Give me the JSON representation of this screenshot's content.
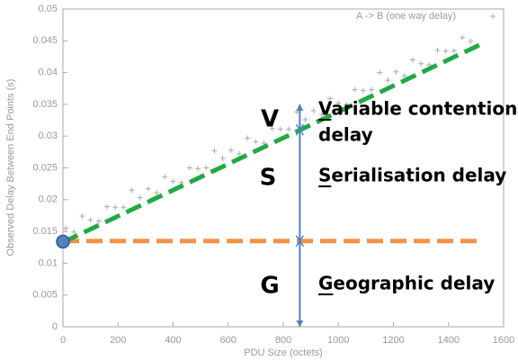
{
  "chart_data": {
    "type": "scatter",
    "xlabel": "PDU Size (octets)",
    "ylabel": "Observed Delay Between End Points (s)",
    "xlim": [
      0,
      1600
    ],
    "xticks": [
      0,
      200,
      400,
      600,
      800,
      1000,
      1200,
      1400,
      1600
    ],
    "ylim": [
      0,
      0.05
    ],
    "yticks": [
      0,
      0.005,
      0.01,
      0.015,
      0.02,
      0.025,
      0.03,
      0.035,
      0.04,
      0.045,
      0.05
    ],
    "legend": "top-right",
    "series": [
      {
        "name": "A -> B (one way delay)",
        "color": "#aaaaaa",
        "x": [
          10,
          40,
          70,
          100,
          130,
          160,
          190,
          220,
          250,
          280,
          310,
          340,
          370,
          400,
          430,
          460,
          490,
          520,
          550,
          580,
          610,
          640,
          670,
          700,
          730,
          760,
          790,
          820,
          850,
          880,
          910,
          940,
          970,
          1000,
          1030,
          1060,
          1090,
          1120,
          1150,
          1180,
          1210,
          1240,
          1270,
          1300,
          1330,
          1360,
          1390,
          1420,
          1450,
          1480
        ],
        "values": [
          0.0155,
          0.0149,
          0.0174,
          0.0168,
          0.0166,
          0.0189,
          0.0188,
          0.0188,
          0.0215,
          0.0203,
          0.0217,
          0.0211,
          0.0236,
          0.0229,
          0.0227,
          0.025,
          0.0249,
          0.025,
          0.0277,
          0.0265,
          0.0278,
          0.0272,
          0.0297,
          0.0291,
          0.0289,
          0.0312,
          0.0311,
          0.0311,
          0.0338,
          0.0326,
          0.034,
          0.0334,
          0.0359,
          0.0352,
          0.035,
          0.0373,
          0.0372,
          0.0373,
          0.04,
          0.0388,
          0.0401,
          0.0395,
          0.042,
          0.0414,
          0.0412,
          0.0435,
          0.0434,
          0.0434,
          0.0455,
          0.0449
        ]
      }
    ],
    "fit_line": {
      "x": [
        0,
        1535
      ],
      "y": [
        0.0133,
        0.0448
      ],
      "color": "#22a845"
    },
    "base_line": {
      "x": [
        0,
        1510
      ],
      "y": [
        0.0135,
        0.0135
      ],
      "color": "#f0944a"
    },
    "intercept": {
      "x": 0,
      "y": 0.0134,
      "color": "#4f81bd"
    },
    "arrow": {
      "x": 860,
      "y": [
        0,
        0.0135,
        0.031,
        0.035
      ],
      "color": "#4f81bd"
    },
    "annotations": [
      {
        "letter": "V",
        "lines": [
          "Variable contention",
          "delay"
        ]
      },
      {
        "letter": "S",
        "lines": [
          "Serialisation delay"
        ]
      },
      {
        "letter": "G",
        "lines": [
          "Geographic delay"
        ]
      }
    ]
  }
}
